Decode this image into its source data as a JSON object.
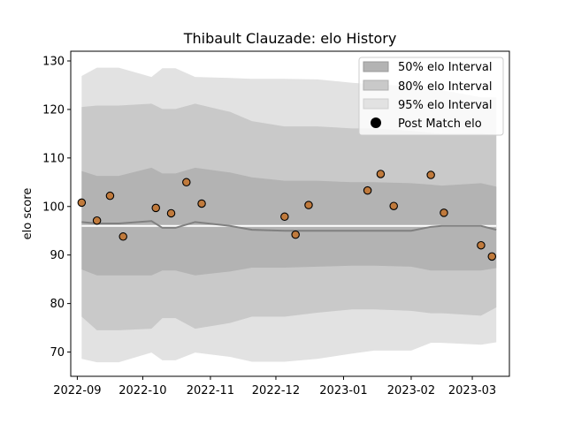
{
  "chart_data": {
    "type": "scatter",
    "title": "Thibault Clauzade: elo History",
    "xlabel": "",
    "ylabel": "elo score",
    "ylim": [
      65,
      132
    ],
    "xlim": [
      "2022-08-29",
      "2023-03-18"
    ],
    "x_ticks": [
      "2022-09",
      "2022-10",
      "2022-11",
      "2022-12",
      "2023-01",
      "2023-02",
      "2023-03"
    ],
    "x_tick_dates": [
      "2022-09-01",
      "2022-10-01",
      "2022-11-01",
      "2022-12-01",
      "2023-01-01",
      "2023-02-01",
      "2023-03-01"
    ],
    "y_ticks": [
      70,
      80,
      90,
      100,
      110,
      120,
      130
    ],
    "grid": false,
    "legend_position": "top-right",
    "colors": {
      "band_50": "#b3b3b3",
      "band_80": "#c9c9c9",
      "band_95": "#e2e2e2",
      "mean_line": "#808080",
      "point_fill": "#c07a3c",
      "point_edge": "#000000"
    },
    "bands": {
      "dates": [
        "2022-09-03",
        "2022-09-10",
        "2022-09-20",
        "2022-10-05",
        "2022-10-10",
        "2022-10-16",
        "2022-10-25",
        "2022-11-10",
        "2022-11-20",
        "2022-12-05",
        "2022-12-20",
        "2023-01-05",
        "2023-01-15",
        "2023-02-01",
        "2023-02-10",
        "2023-02-15",
        "2023-03-05",
        "2023-03-12"
      ],
      "mean": [
        96.8,
        96.5,
        96.5,
        97.0,
        95.6,
        95.6,
        96.8,
        96.0,
        95.2,
        95.0,
        95.0,
        95.0,
        95.0,
        95.0,
        95.8,
        96.0,
        96.0,
        95.2
      ],
      "lower_50": [
        87.0,
        85.8,
        85.8,
        85.8,
        86.8,
        86.8,
        85.8,
        86.6,
        87.4,
        87.4,
        87.6,
        87.8,
        87.8,
        87.6,
        86.8,
        86.8,
        86.8,
        87.3
      ],
      "upper_50": [
        107.3,
        106.3,
        106.3,
        108.0,
        106.8,
        106.8,
        108.0,
        107.0,
        106.0,
        105.3,
        105.3,
        105.0,
        105.0,
        104.8,
        104.5,
        104.3,
        104.8,
        104.1
      ],
      "lower_80": [
        77.3,
        74.5,
        74.5,
        74.8,
        77.0,
        77.0,
        74.8,
        76.0,
        77.3,
        77.3,
        78.1,
        78.8,
        78.8,
        78.5,
        78.0,
        78.0,
        77.5,
        79.2
      ],
      "upper_80": [
        120.5,
        120.8,
        120.8,
        121.2,
        120.1,
        120.1,
        121.2,
        119.5,
        117.6,
        116.5,
        116.5,
        116.1,
        116.1,
        115.6,
        115.2,
        115.0,
        115.0,
        114.8
      ],
      "lower_95": [
        68.6,
        67.9,
        67.9,
        69.9,
        68.3,
        68.3,
        69.9,
        69.0,
        68.0,
        68.0,
        68.6,
        69.7,
        70.3,
        70.3,
        71.9,
        71.9,
        71.5,
        72.0
      ],
      "upper_95": [
        126.9,
        128.6,
        128.6,
        126.7,
        128.5,
        128.5,
        126.7,
        126.5,
        126.3,
        126.3,
        126.2,
        125.5,
        125.2,
        124.8,
        124.5,
        124.0,
        122.5,
        122.5
      ]
    },
    "series": [
      {
        "name": "Post Match elo",
        "x": [
          "2022-09-03",
          "2022-09-10",
          "2022-09-16",
          "2022-09-22",
          "2022-10-07",
          "2022-10-14",
          "2022-10-21",
          "2022-10-28",
          "2022-12-05",
          "2022-12-10",
          "2022-12-16",
          "2023-01-12",
          "2023-01-18",
          "2023-01-24",
          "2023-02-10",
          "2023-02-16",
          "2023-03-05",
          "2023-03-10"
        ],
        "y": [
          100.8,
          97.1,
          102.2,
          93.8,
          99.7,
          98.6,
          105.0,
          100.6,
          97.9,
          94.2,
          100.3,
          103.3,
          106.7,
          100.1,
          106.5,
          98.7,
          92.0,
          89.7
        ]
      }
    ],
    "legend": [
      "50% elo Interval",
      "80% elo Interval",
      "95% elo Interval",
      "Post Match elo"
    ]
  }
}
